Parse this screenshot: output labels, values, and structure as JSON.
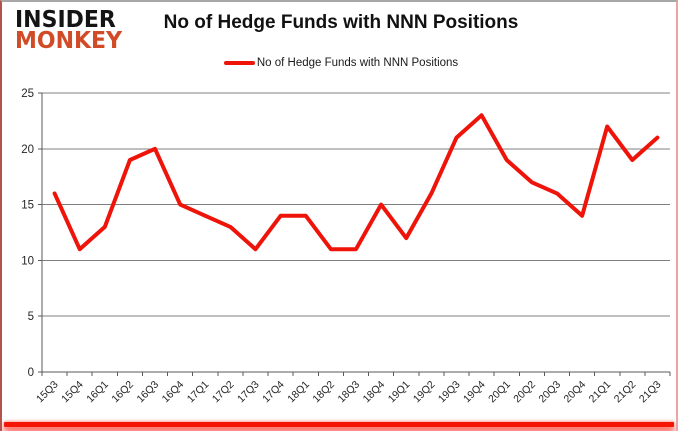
{
  "logo": {
    "line1": "INSIDER",
    "line2": "MONKEY"
  },
  "header": {
    "title": "No of Hedge Funds with NNN Positions"
  },
  "legend": {
    "label": "No of Hedge Funds with NNN Positions"
  },
  "chart_data": {
    "type": "line",
    "title": "No of Hedge Funds with NNN Positions",
    "categories": [
      "15Q3",
      "15Q4",
      "16Q1",
      "16Q2",
      "16Q3",
      "16Q4",
      "17Q1",
      "17Q2",
      "17Q3",
      "17Q4",
      "18Q1",
      "18Q2",
      "18Q3",
      "18Q4",
      "19Q1",
      "19Q2",
      "19Q3",
      "19Q4",
      "20Q1",
      "20Q2",
      "20Q3",
      "20Q4",
      "21Q1",
      "21Q2",
      "21Q3"
    ],
    "series": [
      {
        "name": "No of Hedge Funds with NNN Positions",
        "values": [
          16,
          11,
          13,
          19,
          20,
          15,
          14,
          13,
          11,
          14,
          14,
          11,
          11,
          15,
          12,
          16,
          21,
          23,
          19,
          17,
          16,
          14,
          22,
          19,
          21
        ]
      }
    ],
    "xlabel": "",
    "ylabel": "",
    "ylim": [
      0,
      25
    ],
    "ytick_step": 5,
    "grid": true,
    "legend_position": "top"
  },
  "colors": {
    "line": "#ee1409",
    "grid": "#808080",
    "axis": "#595959",
    "tick_label": "#262626",
    "logo_red": "#d14b27",
    "bottom_bar": "#f51505"
  }
}
